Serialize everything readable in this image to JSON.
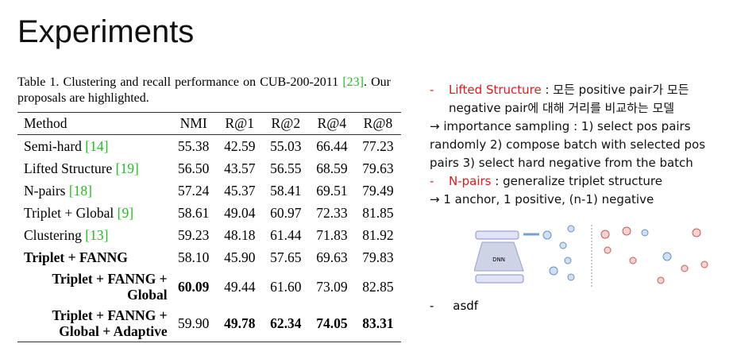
{
  "title": "Experiments",
  "table": {
    "caption_before": "Table 1. Clustering and recall performance on CUB-200-2011",
    "caption_ref": "[23]",
    "caption_after": ". Our proposals are highlighted.",
    "header": [
      "Method",
      "NMI",
      "R@1",
      "R@2",
      "R@4",
      "R@8"
    ],
    "rows": [
      {
        "method": [
          "Semi-hard"
        ],
        "ref": "[14]",
        "values": [
          "55.38",
          "42.59",
          "55.03",
          "66.44",
          "77.23"
        ]
      },
      {
        "method": [
          "Lifted Structure"
        ],
        "ref": "[19]",
        "values": [
          "56.50",
          "43.57",
          "56.55",
          "68.59",
          "79.63"
        ]
      },
      {
        "method": [
          "N-pairs"
        ],
        "ref": "[18]",
        "values": [
          "57.24",
          "45.37",
          "58.41",
          "69.51",
          "79.49"
        ]
      },
      {
        "method": [
          "Triplet + Global"
        ],
        "ref": "[9]",
        "values": [
          "58.61",
          "49.04",
          "60.97",
          "72.33",
          "81.85"
        ]
      },
      {
        "method": [
          "Clustering"
        ],
        "ref": "[13]",
        "values": [
          "59.23",
          "48.18",
          "61.44",
          "71.83",
          "81.92"
        ]
      },
      {
        "method": [
          "Triplet + FANNG"
        ],
        "values": [
          "58.10",
          "45.90",
          "57.65",
          "69.63",
          "79.83"
        ]
      },
      {
        "method": [
          "Triplet + FANNG +",
          "Global"
        ],
        "values": [
          "60.09",
          "49.44",
          "61.60",
          "73.09",
          "82.85"
        ]
      },
      {
        "method": [
          "Triplet + FANNG +",
          "Global + Adaptive"
        ],
        "values": [
          "59.90",
          "49.78",
          "62.34",
          "74.05",
          "83.31"
        ]
      }
    ]
  },
  "notes": [
    {
      "marker": "-",
      "highlight": "Lifted Structure",
      "text": " : 모든 positive pair가 모든 negative pair에 대해 거리를 비교하는 모델"
    },
    {
      "text": "→ importance sampling : 1) select pos pairs randomly  2) compose batch with selected pos pairs 3) select hard negative from the batch"
    },
    {
      "marker": "-",
      "highlight": "N-pairs",
      "text": " : generalize triplet structure"
    },
    {
      "text": "→ 1 anchor, 1 positive, (n-1) negative"
    }
  ],
  "figure": {
    "label": "DNN"
  },
  "last_note": {
    "marker": "-",
    "text": "asdf"
  }
}
